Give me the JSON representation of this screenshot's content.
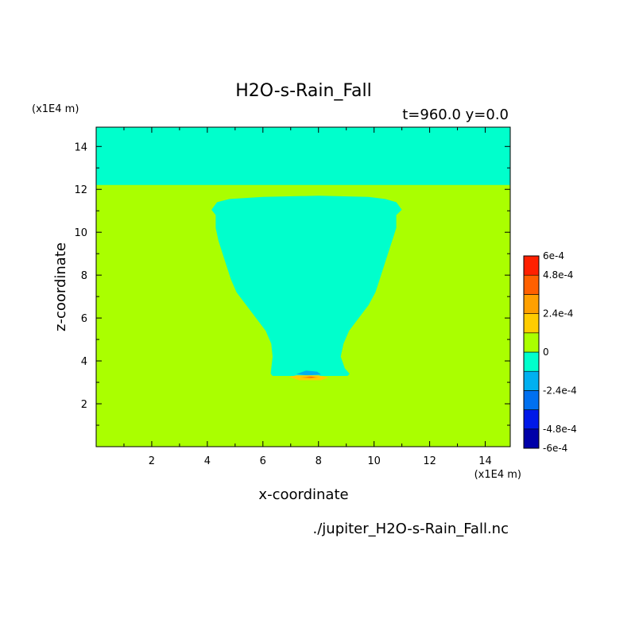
{
  "chart_data": {
    "type": "heatmap",
    "title": "H2O-s-Rain_Fall",
    "subtitle": "t=960.0 y=0.0",
    "xlabel": "x-coordinate",
    "ylabel": "z-coordinate",
    "x_unit": "(x1E4 m)",
    "y_unit": "(x1E4 m)",
    "source": "./jupiter_H2O-s-Rain_Fall.nc",
    "xlim": [
      0.0,
      14.9
    ],
    "ylim": [
      0.0,
      14.9
    ],
    "x_ticks": [
      2,
      4,
      6,
      8,
      10,
      12,
      14
    ],
    "y_ticks": [
      2,
      4,
      6,
      8,
      10,
      12,
      14
    ],
    "colorbar": {
      "levels": [
        -0.0006,
        -0.00048,
        -0.00036,
        -0.00024,
        -0.00012,
        0,
        0.00012,
        0.00024,
        0.00036,
        0.00048,
        0.0006
      ],
      "colors": [
        "#0000a8",
        "#0018e8",
        "#0070f0",
        "#00b0f0",
        "#00ffcc",
        "#aaff00",
        "#ffcc00",
        "#ffa000",
        "#ff6000",
        "#ff2000"
      ],
      "tick_labels": [
        {
          "value": 0.0006,
          "label": "6e-4"
        },
        {
          "value": 0.00048,
          "label": "4.8e-4"
        },
        {
          "value": 0.00024,
          "label": "2.4e-4"
        },
        {
          "value": 0,
          "label": "0"
        },
        {
          "value": -0.00024,
          "label": "-2.4e-4"
        },
        {
          "value": -0.00048,
          "label": "-4.8e-4"
        },
        {
          "value": -0.0006,
          "label": "-6e-4"
        }
      ]
    },
    "background_color": "#aaff00",
    "regions": [
      {
        "name": "upper-layer",
        "color": "#00ffcc",
        "points": [
          [
            0,
            12.2
          ],
          [
            14.9,
            12.2
          ],
          [
            14.9,
            14.9
          ],
          [
            0,
            14.9
          ]
        ]
      },
      {
        "name": "rain-column",
        "color": "#00ffcc",
        "points": [
          [
            6.28,
            3.4
          ],
          [
            6.35,
            3.3
          ],
          [
            9.05,
            3.3
          ],
          [
            9.12,
            3.4
          ],
          [
            8.95,
            3.65
          ],
          [
            8.8,
            4.2
          ],
          [
            8.9,
            4.8
          ],
          [
            9.1,
            5.4
          ],
          [
            9.45,
            6.0
          ],
          [
            9.8,
            6.6
          ],
          [
            10.05,
            7.2
          ],
          [
            10.2,
            7.8
          ],
          [
            10.35,
            8.4
          ],
          [
            10.5,
            9.0
          ],
          [
            10.65,
            9.6
          ],
          [
            10.8,
            10.2
          ],
          [
            10.8,
            10.8
          ],
          [
            11.0,
            11.05
          ],
          [
            10.8,
            11.4
          ],
          [
            10.4,
            11.55
          ],
          [
            9.8,
            11.65
          ],
          [
            8.0,
            11.7
          ],
          [
            6.0,
            11.65
          ],
          [
            4.8,
            11.55
          ],
          [
            4.35,
            11.4
          ],
          [
            4.15,
            11.05
          ],
          [
            4.3,
            10.8
          ],
          [
            4.3,
            10.2
          ],
          [
            4.4,
            9.6
          ],
          [
            4.55,
            9.0
          ],
          [
            4.7,
            8.4
          ],
          [
            4.85,
            7.8
          ],
          [
            5.05,
            7.2
          ],
          [
            5.4,
            6.6
          ],
          [
            5.75,
            6.0
          ],
          [
            6.1,
            5.4
          ],
          [
            6.3,
            4.8
          ],
          [
            6.35,
            4.2
          ],
          [
            6.3,
            3.65
          ]
        ]
      },
      {
        "name": "negative-patch-blue",
        "color": "#00b0f0",
        "points": [
          [
            7.2,
            3.38
          ],
          [
            7.55,
            3.55
          ],
          [
            7.95,
            3.5
          ],
          [
            8.1,
            3.36
          ],
          [
            7.6,
            3.32
          ]
        ]
      },
      {
        "name": "positive-patch-yellow",
        "color": "#ffcc00",
        "points": [
          [
            6.95,
            3.25
          ],
          [
            7.3,
            3.1
          ],
          [
            8.1,
            3.1
          ],
          [
            8.35,
            3.22
          ],
          [
            8.0,
            3.33
          ],
          [
            7.2,
            3.33
          ]
        ]
      },
      {
        "name": "positive-patch-orange",
        "color": "#ffa000",
        "points": [
          [
            7.35,
            3.23
          ],
          [
            7.7,
            3.18
          ],
          [
            8.0,
            3.23
          ],
          [
            7.7,
            3.28
          ]
        ]
      },
      {
        "name": "positive-patch-red",
        "color": "#ff6000",
        "points": [
          [
            7.55,
            3.24
          ],
          [
            7.75,
            3.22
          ],
          [
            7.9,
            3.24
          ],
          [
            7.75,
            3.26
          ]
        ]
      }
    ]
  }
}
